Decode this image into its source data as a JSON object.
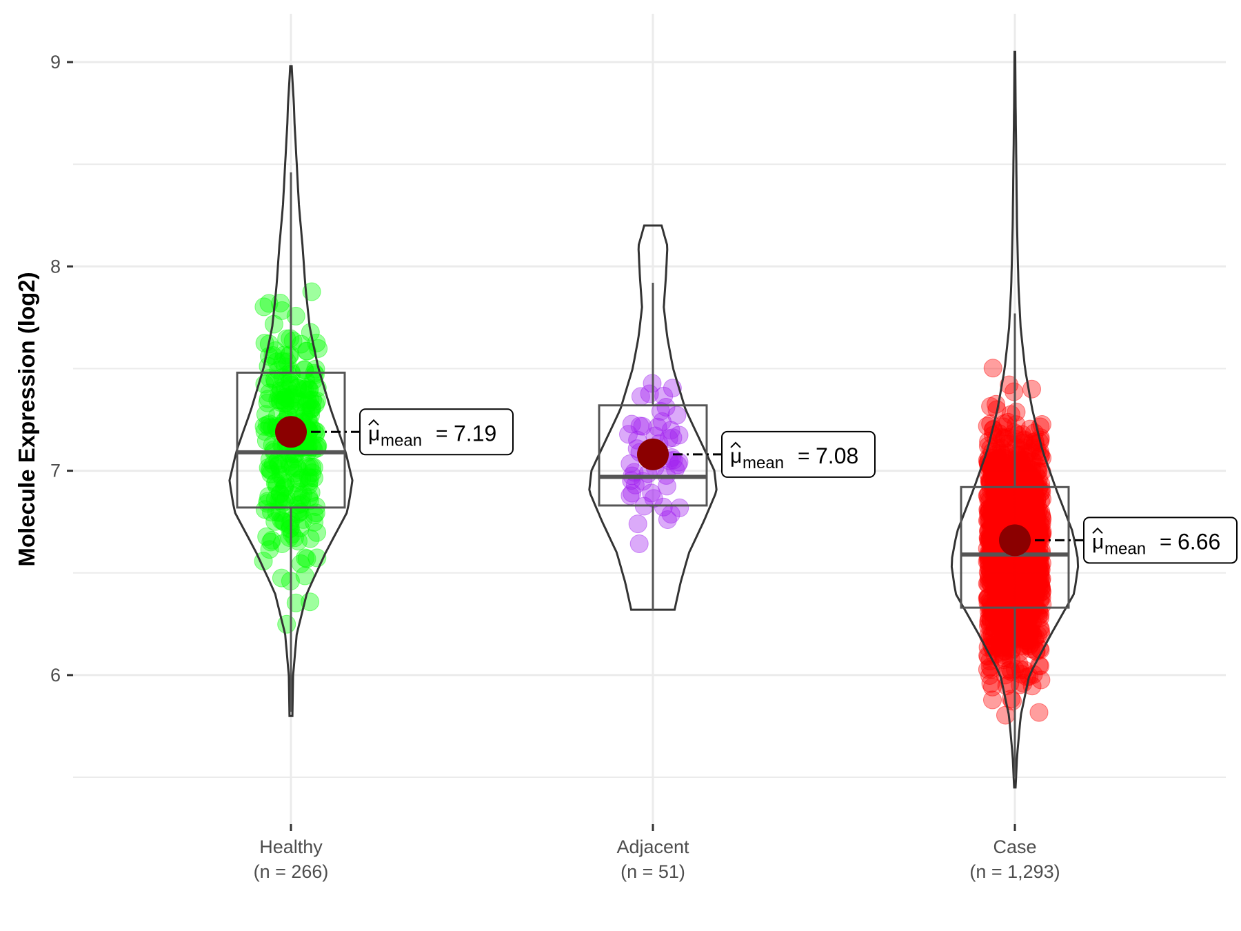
{
  "chart_data": {
    "type": "violin-box-jitter",
    "title": "",
    "xlabel": "",
    "ylabel": "Molecule Expression (log2)",
    "ylim": [
      5.35,
      9.15
    ],
    "yticks": [
      6,
      7,
      8,
      9
    ],
    "ytick_labels": [
      "6",
      "7",
      "8",
      "9"
    ],
    "grid": true,
    "groups": [
      {
        "name": "Healthy",
        "n_label": "(n = 266)",
        "n": 266,
        "color": "#00ff00",
        "box": {
          "q1": 6.82,
          "median": 7.09,
          "q3": 7.48,
          "whisker_low": 5.82,
          "whisker_high": 8.46
        },
        "violin_range": [
          5.8,
          8.98
        ],
        "mean": 7.19,
        "mean_label": {
          "symbol": "μ",
          "sub": "mean",
          "eq": "=",
          "value": "7.19"
        },
        "density": [
          [
            5.8,
            0.02
          ],
          [
            6.0,
            0.03
          ],
          [
            6.2,
            0.08
          ],
          [
            6.4,
            0.22
          ],
          [
            6.6,
            0.48
          ],
          [
            6.8,
            0.78
          ],
          [
            6.95,
            0.85
          ],
          [
            7.1,
            0.75
          ],
          [
            7.3,
            0.55
          ],
          [
            7.5,
            0.38
          ],
          [
            7.7,
            0.26
          ],
          [
            7.9,
            0.2
          ],
          [
            8.1,
            0.16
          ],
          [
            8.3,
            0.11
          ],
          [
            8.5,
            0.08
          ],
          [
            8.7,
            0.05
          ],
          [
            8.8,
            0.04
          ],
          [
            8.98,
            0.01
          ]
        ]
      },
      {
        "name": "Adjacent",
        "n_label": "(n = 51)",
        "n": 51,
        "color": "#a020f0",
        "box": {
          "q1": 6.83,
          "median": 6.97,
          "q3": 7.32,
          "whisker_low": 6.32,
          "whisker_high": 7.92
        },
        "violin_range": [
          6.32,
          8.2
        ],
        "mean": 7.08,
        "mean_label": {
          "symbol": "μ",
          "sub": "mean",
          "eq": "=",
          "value": "7.08"
        },
        "density": [
          [
            6.32,
            0.3
          ],
          [
            6.45,
            0.38
          ],
          [
            6.6,
            0.5
          ],
          [
            6.75,
            0.7
          ],
          [
            6.9,
            0.88
          ],
          [
            7.0,
            0.85
          ],
          [
            7.15,
            0.65
          ],
          [
            7.3,
            0.45
          ],
          [
            7.5,
            0.28
          ],
          [
            7.65,
            0.2
          ],
          [
            7.8,
            0.15
          ],
          [
            7.95,
            0.18
          ],
          [
            8.1,
            0.2
          ],
          [
            8.2,
            0.12
          ]
        ]
      },
      {
        "name": "Case",
        "n_label": "(n = 1,293)",
        "n": 1293,
        "color": "#ff0000",
        "box": {
          "q1": 6.33,
          "median": 6.59,
          "q3": 6.92,
          "whisker_low": 5.5,
          "whisker_high": 7.77
        },
        "violin_range": [
          5.45,
          9.05
        ],
        "mean": 6.66,
        "mean_label": {
          "symbol": "μ",
          "sub": "mean",
          "eq": "=",
          "value": "6.66"
        },
        "density": [
          [
            5.45,
            0.01
          ],
          [
            5.6,
            0.03
          ],
          [
            5.8,
            0.08
          ],
          [
            6.0,
            0.2
          ],
          [
            6.2,
            0.5
          ],
          [
            6.4,
            0.82
          ],
          [
            6.55,
            0.88
          ],
          [
            6.7,
            0.8
          ],
          [
            6.9,
            0.58
          ],
          [
            7.1,
            0.38
          ],
          [
            7.3,
            0.24
          ],
          [
            7.5,
            0.14
          ],
          [
            7.7,
            0.08
          ],
          [
            7.9,
            0.05
          ],
          [
            8.2,
            0.03
          ],
          [
            8.5,
            0.02
          ],
          [
            8.8,
            0.01
          ],
          [
            9.05,
            0.005
          ]
        ]
      }
    ]
  }
}
